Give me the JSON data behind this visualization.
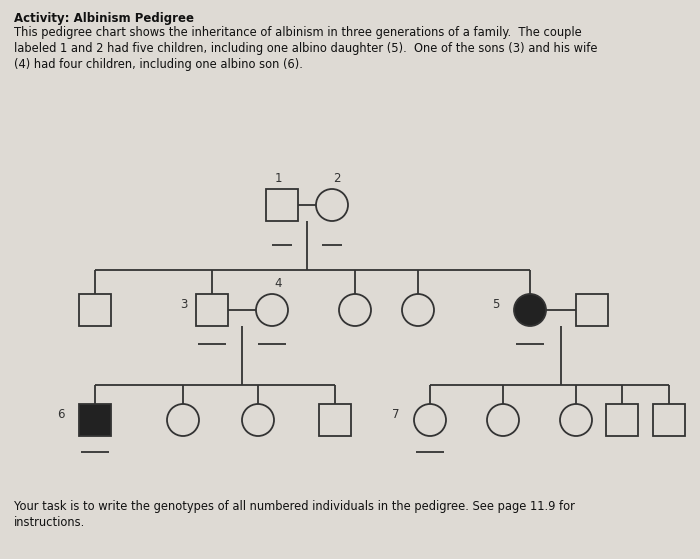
{
  "title": "Activity: Albinism Pedigree",
  "desc_line1": "This pedigree chart shows the inheritance of albinism in three generations of a family.  The couple",
  "desc_line2": "labeled 1 and 2 had five children, including one albino daughter (5).  One of the sons (3) and his wife",
  "desc_line3": "(4) had four children, including one albino son (6).",
  "footer_line1": "Your task is to write the genotypes of all numbered individuals in the pedigree. See page 11.9 for",
  "footer_line2": "instructions.",
  "bg_color": "#dedad4",
  "line_color": "#333333",
  "fill_albino": "#222222",
  "fill_normal": "#dedad4",
  "lw": 1.3
}
